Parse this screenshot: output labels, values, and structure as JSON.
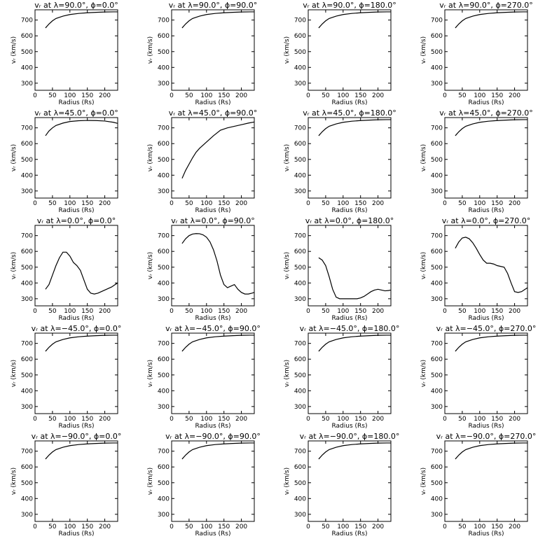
{
  "figure": {
    "x_ticks": [
      "0",
      "50",
      "100",
      "150",
      "200"
    ],
    "y_ticks": [
      "300",
      "400",
      "500",
      "600",
      "700"
    ],
    "xlabel": "Radius (Rs)",
    "ylabel": "vᵣ (km/s)"
  },
  "chart_data": [
    {
      "type": "line",
      "title": "vᵣ at λ=90.0°, ϕ=0.0°",
      "xlabel": "Radius (Rs)",
      "ylabel": "vᵣ (km/s)",
      "xlim": [
        0,
        237
      ],
      "ylim": [
        255,
        765
      ],
      "series": [
        {
          "x": [
            30,
            40,
            50,
            60,
            80,
            100,
            125,
            150,
            175,
            200,
            225,
            237
          ],
          "values": [
            650,
            675,
            695,
            710,
            725,
            735,
            742,
            746,
            749,
            751,
            752,
            752
          ]
        }
      ]
    },
    {
      "type": "line",
      "title": "vᵣ at λ=90.0°, ϕ=90.0°",
      "xlabel": "Radius (Rs)",
      "ylabel": "vᵣ (km/s)",
      "xlim": [
        0,
        237
      ],
      "ylim": [
        255,
        765
      ],
      "series": [
        {
          "x": [
            30,
            40,
            50,
            60,
            80,
            100,
            125,
            150,
            175,
            200,
            225,
            237
          ],
          "values": [
            650,
            675,
            695,
            710,
            725,
            735,
            742,
            746,
            749,
            751,
            752,
            752
          ]
        }
      ]
    },
    {
      "type": "line",
      "title": "vᵣ at λ=90.0°, ϕ=180.0°",
      "xlabel": "Radius (Rs)",
      "ylabel": "vᵣ (km/s)",
      "xlim": [
        0,
        237
      ],
      "ylim": [
        255,
        765
      ],
      "series": [
        {
          "x": [
            30,
            40,
            50,
            60,
            80,
            100,
            125,
            150,
            175,
            200,
            225,
            237
          ],
          "values": [
            650,
            675,
            695,
            710,
            725,
            735,
            742,
            746,
            749,
            751,
            752,
            752
          ]
        }
      ]
    },
    {
      "type": "line",
      "title": "vᵣ at λ=90.0°, ϕ=270.0°",
      "xlabel": "Radius (Rs)",
      "ylabel": "vᵣ (km/s)",
      "xlim": [
        0,
        237
      ],
      "ylim": [
        255,
        765
      ],
      "series": [
        {
          "x": [
            30,
            40,
            50,
            60,
            80,
            100,
            125,
            150,
            175,
            200,
            225,
            237
          ],
          "values": [
            650,
            675,
            695,
            710,
            725,
            735,
            742,
            746,
            749,
            751,
            752,
            752
          ]
        }
      ]
    },
    {
      "type": "line",
      "title": "vᵣ at λ=45.0°, ϕ=0.0°",
      "xlabel": "Radius (Rs)",
      "ylabel": "vᵣ (km/s)",
      "xlim": [
        0,
        237
      ],
      "ylim": [
        255,
        765
      ],
      "series": [
        {
          "x": [
            30,
            40,
            50,
            60,
            80,
            100,
            125,
            150,
            175,
            200,
            225,
            237
          ],
          "values": [
            650,
            680,
            700,
            715,
            730,
            740,
            745,
            747,
            746,
            743,
            735,
            728
          ]
        }
      ]
    },
    {
      "type": "line",
      "title": "vᵣ at λ=45.0°, ϕ=90.0°",
      "xlabel": "Radius (Rs)",
      "ylabel": "vᵣ (km/s)",
      "xlim": [
        0,
        237
      ],
      "ylim": [
        255,
        765
      ],
      "series": [
        {
          "x": [
            30,
            40,
            50,
            60,
            70,
            80,
            100,
            120,
            140,
            160,
            180,
            200,
            220,
            237
          ],
          "values": [
            380,
            430,
            470,
            510,
            545,
            570,
            610,
            650,
            685,
            700,
            710,
            720,
            730,
            737
          ]
        }
      ]
    },
    {
      "type": "line",
      "title": "vᵣ at λ=45.0°, ϕ=180.0°",
      "xlabel": "Radius (Rs)",
      "ylabel": "vᵣ (km/s)",
      "xlim": [
        0,
        237
      ],
      "ylim": [
        255,
        765
      ],
      "series": [
        {
          "x": [
            30,
            40,
            50,
            60,
            80,
            100,
            125,
            150,
            175,
            200,
            225,
            237
          ],
          "values": [
            650,
            675,
            695,
            710,
            725,
            735,
            742,
            746,
            749,
            751,
            752,
            752
          ]
        }
      ]
    },
    {
      "type": "line",
      "title": "vᵣ at λ=45.0°, ϕ=270.0°",
      "xlabel": "Radius (Rs)",
      "ylabel": "vᵣ (km/s)",
      "xlim": [
        0,
        237
      ],
      "ylim": [
        255,
        765
      ],
      "series": [
        {
          "x": [
            30,
            40,
            50,
            60,
            80,
            100,
            125,
            150,
            175,
            200,
            225,
            237
          ],
          "values": [
            650,
            675,
            695,
            710,
            725,
            735,
            742,
            746,
            749,
            751,
            752,
            752
          ]
        }
      ]
    },
    {
      "type": "line",
      "title": "vᵣ at λ=0.0°, ϕ=0.0°",
      "xlabel": "Radius (Rs)",
      "ylabel": "vᵣ (km/s)",
      "xlim": [
        0,
        237
      ],
      "ylim": [
        255,
        765
      ],
      "series": [
        {
          "x": [
            30,
            40,
            50,
            60,
            70,
            80,
            90,
            100,
            110,
            120,
            130,
            140,
            150,
            160,
            170,
            180,
            190,
            200,
            210,
            220,
            230,
            237
          ],
          "values": [
            360,
            390,
            450,
            510,
            560,
            595,
            595,
            570,
            530,
            510,
            480,
            420,
            360,
            335,
            330,
            335,
            345,
            355,
            365,
            375,
            390,
            400
          ]
        }
      ]
    },
    {
      "type": "line",
      "title": "vᵣ at λ=0.0°, ϕ=90.0°",
      "xlabel": "Radius (Rs)",
      "ylabel": "vᵣ (km/s)",
      "xlim": [
        0,
        237
      ],
      "ylim": [
        255,
        765
      ],
      "series": [
        {
          "x": [
            30,
            40,
            50,
            60,
            70,
            80,
            90,
            100,
            110,
            120,
            130,
            140,
            150,
            160,
            170,
            180,
            190,
            200,
            210,
            220,
            230,
            237
          ],
          "values": [
            650,
            680,
            700,
            710,
            713,
            712,
            705,
            690,
            660,
            610,
            540,
            450,
            390,
            370,
            380,
            390,
            360,
            340,
            330,
            330,
            335,
            340
          ]
        }
      ]
    },
    {
      "type": "line",
      "title": "vᵣ at λ=0.0°, ϕ=180.0°",
      "xlabel": "Radius (Rs)",
      "ylabel": "vᵣ (km/s)",
      "xlim": [
        0,
        237
      ],
      "ylim": [
        255,
        765
      ],
      "series": [
        {
          "x": [
            30,
            40,
            50,
            60,
            70,
            80,
            90,
            100,
            110,
            120,
            130,
            140,
            150,
            160,
            170,
            180,
            190,
            200,
            210,
            220,
            230,
            237
          ],
          "values": [
            560,
            545,
            510,
            440,
            360,
            310,
            300,
            300,
            300,
            300,
            300,
            300,
            305,
            315,
            330,
            345,
            355,
            360,
            355,
            350,
            352,
            355
          ]
        }
      ]
    },
    {
      "type": "line",
      "title": "vᵣ at λ=0.0°, ϕ=270.0°",
      "xlabel": "Radius (Rs)",
      "ylabel": "vᵣ (km/s)",
      "xlim": [
        0,
        237
      ],
      "ylim": [
        255,
        765
      ],
      "series": [
        {
          "x": [
            30,
            40,
            50,
            60,
            70,
            80,
            90,
            100,
            110,
            120,
            130,
            140,
            150,
            160,
            170,
            180,
            190,
            200,
            210,
            220,
            230,
            237
          ],
          "values": [
            620,
            660,
            685,
            690,
            680,
            655,
            620,
            580,
            545,
            525,
            525,
            520,
            510,
            505,
            500,
            460,
            400,
            345,
            340,
            345,
            360,
            370
          ]
        }
      ]
    },
    {
      "type": "line",
      "title": "vᵣ at λ=−45.0°, ϕ=0.0°",
      "xlabel": "Radius (Rs)",
      "ylabel": "vᵣ (km/s)",
      "xlim": [
        0,
        237
      ],
      "ylim": [
        255,
        765
      ],
      "series": [
        {
          "x": [
            30,
            40,
            50,
            60,
            80,
            100,
            125,
            150,
            175,
            200,
            225,
            237
          ],
          "values": [
            650,
            675,
            695,
            710,
            725,
            735,
            742,
            746,
            749,
            751,
            752,
            752
          ]
        }
      ]
    },
    {
      "type": "line",
      "title": "vᵣ at λ=−45.0°, ϕ=90.0°",
      "xlabel": "Radius (Rs)",
      "ylabel": "vᵣ (km/s)",
      "xlim": [
        0,
        237
      ],
      "ylim": [
        255,
        765
      ],
      "series": [
        {
          "x": [
            30,
            40,
            50,
            60,
            80,
            100,
            125,
            150,
            175,
            200,
            225,
            237
          ],
          "values": [
            650,
            675,
            695,
            710,
            725,
            735,
            742,
            746,
            749,
            751,
            752,
            752
          ]
        }
      ]
    },
    {
      "type": "line",
      "title": "vᵣ at λ=−45.0°, ϕ=180.0°",
      "xlabel": "Radius (Rs)",
      "ylabel": "vᵣ (km/s)",
      "xlim": [
        0,
        237
      ],
      "ylim": [
        255,
        765
      ],
      "series": [
        {
          "x": [
            30,
            40,
            50,
            60,
            80,
            100,
            125,
            150,
            175,
            200,
            225,
            237
          ],
          "values": [
            650,
            675,
            695,
            710,
            725,
            735,
            742,
            746,
            749,
            751,
            752,
            752
          ]
        }
      ]
    },
    {
      "type": "line",
      "title": "vᵣ at λ=−45.0°, ϕ=270.0°",
      "xlabel": "Radius (Rs)",
      "ylabel": "vᵣ (km/s)",
      "xlim": [
        0,
        237
      ],
      "ylim": [
        255,
        765
      ],
      "series": [
        {
          "x": [
            30,
            40,
            50,
            60,
            80,
            100,
            125,
            150,
            175,
            200,
            225,
            237
          ],
          "values": [
            650,
            675,
            695,
            710,
            725,
            735,
            742,
            746,
            749,
            751,
            752,
            752
          ]
        }
      ]
    },
    {
      "type": "line",
      "title": "vᵣ at λ=−90.0°, ϕ=0.0°",
      "xlabel": "Radius (Rs)",
      "ylabel": "vᵣ (km/s)",
      "xlim": [
        0,
        237
      ],
      "ylim": [
        255,
        765
      ],
      "series": [
        {
          "x": [
            30,
            40,
            50,
            60,
            80,
            100,
            125,
            150,
            175,
            200,
            225,
            237
          ],
          "values": [
            650,
            675,
            695,
            710,
            725,
            735,
            742,
            746,
            749,
            751,
            752,
            752
          ]
        }
      ]
    },
    {
      "type": "line",
      "title": "vᵣ at λ=−90.0°, ϕ=90.0°",
      "xlabel": "Radius (Rs)",
      "ylabel": "vᵣ (km/s)",
      "xlim": [
        0,
        237
      ],
      "ylim": [
        255,
        765
      ],
      "series": [
        {
          "x": [
            30,
            40,
            50,
            60,
            80,
            100,
            125,
            150,
            175,
            200,
            225,
            237
          ],
          "values": [
            650,
            675,
            695,
            710,
            725,
            735,
            742,
            746,
            749,
            751,
            752,
            752
          ]
        }
      ]
    },
    {
      "type": "line",
      "title": "vᵣ at λ=−90.0°, ϕ=180.0°",
      "xlabel": "Radius (Rs)",
      "ylabel": "vᵣ (km/s)",
      "xlim": [
        0,
        237
      ],
      "ylim": [
        255,
        765
      ],
      "series": [
        {
          "x": [
            30,
            40,
            50,
            60,
            80,
            100,
            125,
            150,
            175,
            200,
            225,
            237
          ],
          "values": [
            650,
            675,
            695,
            710,
            725,
            735,
            742,
            746,
            749,
            751,
            752,
            752
          ]
        }
      ]
    },
    {
      "type": "line",
      "title": "vᵣ at λ=−90.0°, ϕ=270.0°",
      "xlabel": "Radius (Rs)",
      "ylabel": "vᵣ (km/s)",
      "xlim": [
        0,
        237
      ],
      "ylim": [
        255,
        765
      ],
      "series": [
        {
          "x": [
            30,
            40,
            50,
            60,
            80,
            100,
            125,
            150,
            175,
            200,
            225,
            237
          ],
          "values": [
            650,
            675,
            695,
            710,
            725,
            735,
            742,
            746,
            749,
            751,
            752,
            752
          ]
        }
      ]
    }
  ]
}
